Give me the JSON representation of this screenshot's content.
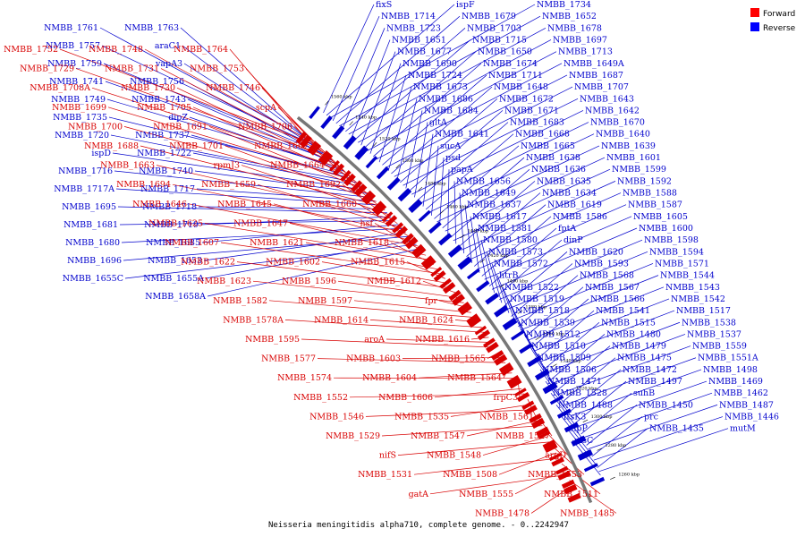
{
  "caption": "Neisseria meningitidis alpha710, complete genome. - 0..2242947",
  "legend": [
    {
      "label": "Forward",
      "color": "#ff0000"
    },
    {
      "label": "Reverse",
      "color": "#0000ff"
    }
  ],
  "colors": {
    "forward": "#d80000",
    "reverse": "#0000cc",
    "backbone": "#777777"
  },
  "ticks": [
    "1560 kbp",
    "1540 kbp",
    "1520 kbp",
    "1500 kbp",
    "1480 kbp",
    "1460 kbp",
    "1440 kbp",
    "1420 kbp",
    "1400 kbp",
    "1380 kbp",
    "1360 kbp",
    "1340 kbp",
    "1320 kbp",
    "1300 kbp",
    "1280 kbp",
    "1260 kbp"
  ],
  "labels": {
    "reverse_right": [
      "fixS",
      "ispF",
      "NMBB_1734",
      "NMBB_1714",
      "NMBB_1679",
      "NMBB_1652",
      "NMBB_1723",
      "NMBB_1703",
      "NMBB_1678",
      "NMBB_1651",
      "NMBB_1715",
      "NMBB_1697",
      "NMBB_1677",
      "NMBB_1650",
      "NMBB_1713",
      "NMBB_1690",
      "NMBB_1674",
      "NMBB_1649A",
      "NMBB_1724",
      "NMBB_1711",
      "NMBB_1687",
      "NMBB_1673",
      "NMBB_1648",
      "NMBB_1707",
      "NMBB_1686",
      "NMBB_1672",
      "NMBB_1643",
      "NMBB_1684",
      "NMBB_1671",
      "NMBB_1642",
      "gltA",
      "NMBB_1683",
      "NMBB_1670",
      "NMBB_1641",
      "NMBB_1668",
      "NMBB_1640",
      "sucA",
      "NMBB_1665",
      "NMBB_1639",
      "psd",
      "NMBB_1638",
      "NMBB_1601",
      "papA",
      "NMBB_1636",
      "NMBB_1599",
      "NMBB_1656",
      "NMBB_1635",
      "NMBB_1592",
      "NMBB_1649",
      "NMBB_1634",
      "NMBB_1588",
      "NMBB_1637",
      "NMBB_1619",
      "NMBB_1587",
      "NMBB_1617",
      "NMBB_1586",
      "NMBB_1605",
      "NMBB_1581",
      "fptA",
      "NMBB_1600",
      "NMBB_1580",
      "dinP",
      "NMBB_1598",
      "NMBB_1573",
      "NMBB_1620",
      "NMBB_1594",
      "NMBB_1572",
      "NMBB_1593",
      "NMBB_1571",
      "htrB",
      "NMBB_1568",
      "NMBB_1544",
      "NMBB_1522",
      "NMBB_1567",
      "NMBB_1543",
      "NMBB_1519",
      "NMBB_1566",
      "NMBB_1542",
      "NMBB_1518",
      "NMBB_1541",
      "NMBB_1517",
      "NMBB_1539",
      "NMBB_1515",
      "NMBB_1538",
      "NMBB_1512",
      "NMBB_1480",
      "NMBB_1537",
      "NMBB_1510",
      "NMBB_1479",
      "NMBB_1559",
      "NMBB_1509",
      "NMBB_1475",
      "NMBB_1551A",
      "NMBB_1506",
      "NMBB_1472",
      "NMBB_1498",
      "NMBB_1471",
      "NMBB_1497",
      "NMBB_1469",
      "NMBB_1528",
      "suhB",
      "NMBB_1462",
      "NMBB_1488",
      "NMBB_1450",
      "NMBB_1487",
      "ftsK3",
      "prc",
      "NMBB_1446",
      "clpP",
      "NMBB_1435",
      "mutM",
      "plsC"
    ],
    "reverse_left": [
      "NMBB_1763",
      "NMBB_1761",
      "araC1",
      "NMBB_1757",
      "vapA3",
      "NMBB_1759",
      "NMBB_1756",
      "NMBB_1741",
      "NMBB_1743",
      "NMBB_1749",
      "dipZ",
      "NMBB_1735",
      "NMBB_1737",
      "NMBB_1720",
      "NMBB_1722",
      "ispD",
      "NMBB_1740",
      "NMBB_1716",
      "NMBB_1717",
      "NMBB_1717A",
      "NMBB_1718",
      "NMBB_1695",
      "NMBB_1719",
      "NMBB_1681",
      "NMBB_1685",
      "NMBB_1680",
      "NMBB_1653",
      "NMBB_1696",
      "NMBB_1655A",
      "NMBB_1655C",
      "NMBB_1658A"
    ],
    "forward_left": [
      "NMBB_1764",
      "NMBB_1748",
      "NMBB_1752",
      "NMBB_1753",
      "NMBB_1731",
      "NMBB_1729",
      "NMBB_1746",
      "NMBB_1730",
      "NMBB_1708A",
      "scpA",
      "NMBB_1705",
      "NMBB_1699",
      "NMBB_1706",
      "NMBB_1691",
      "NMBB_1700",
      "NMBB_1667",
      "NMBB_1701",
      "NMBB_1688",
      "NMBB_1664",
      "rpmJ3",
      "NMBB_1663",
      "NMBB_1692",
      "NMBB_1659",
      "NMBB_1694",
      "NMBB_1660",
      "NMBB_1645",
      "NMBB_1646",
      "hsf",
      "NMBB_1647",
      "NMBB_1625",
      "NMBB_1618",
      "NMBB_1621",
      "NMBB_1607",
      "NMBB_1615",
      "NMBB_1602",
      "NMBB_1622",
      "NMBB_1612",
      "NMBB_1596",
      "NMBB_1623",
      "fpr",
      "NMBB_1597",
      "NMBB_1582",
      "NMBB_1624",
      "NMBB_1614",
      "NMBB_1578A",
      "NMBB_1616",
      "aroA",
      "NMBB_1595",
      "NMBB_1565",
      "NMBB_1603",
      "NMBB_1577",
      "NMBB_1564",
      "NMBB_1604",
      "NMBB_1574",
      "frpC3",
      "NMBB_1606",
      "NMBB_1552",
      "NMBB_1561",
      "NMBB_1535",
      "NMBB_1546",
      "NMBB_1527",
      "NMBB_1547",
      "NMBB_1529",
      "argD",
      "NMBB_1548",
      "nifS",
      "NMBB_1553",
      "NMBB_1508",
      "NMBB_1531",
      "NMBB_1511",
      "NMBB_1555",
      "gatA",
      "NMBB_1485",
      "NMBB_1478"
    ]
  }
}
